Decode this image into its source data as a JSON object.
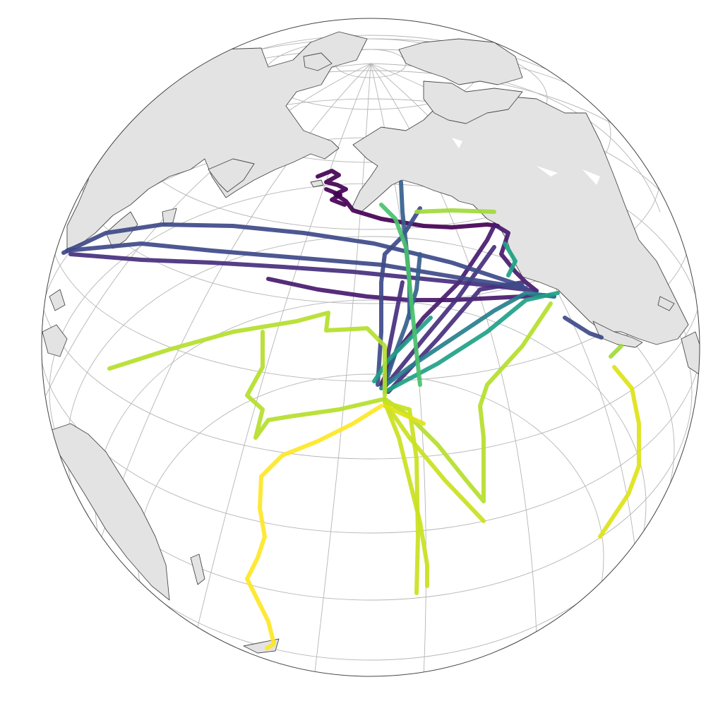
{
  "map": {
    "projection": "orthographic",
    "background": "#ffffff",
    "ocean_color": "#ffffff",
    "land_color": "#e3e3e3",
    "coastline_color": "#4a4a4a",
    "graticule_color": "#b5b5b5",
    "colormap": "viridis",
    "labels": []
  },
  "tracks": [
    {
      "color": "#440154"
    },
    {
      "color": "#481a6c"
    },
    {
      "color": "#472f7d"
    },
    {
      "color": "#3e4a89"
    },
    {
      "color": "#355f8d"
    },
    {
      "color": "#277f8e"
    },
    {
      "color": "#1fa187"
    },
    {
      "color": "#4ac16d"
    },
    {
      "color": "#9fda3a"
    },
    {
      "color": "#b5de2b"
    },
    {
      "color": "#cae11f"
    },
    {
      "color": "#dde318"
    },
    {
      "color": "#fde725"
    }
  ]
}
